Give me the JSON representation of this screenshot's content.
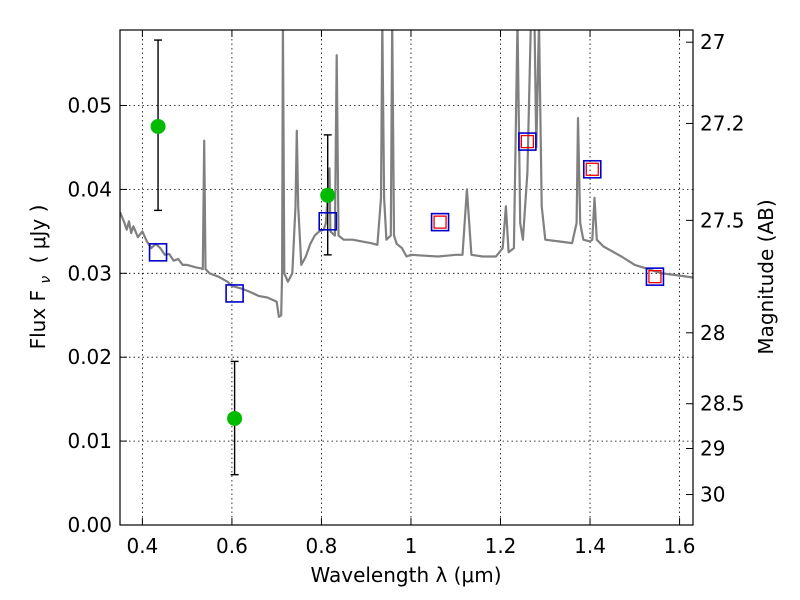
{
  "chart_data": {
    "type": "scatter",
    "title": "",
    "xlabel": "Wavelength  λ (μm)",
    "ylabel_left": "Flux  F",
    "ylabel_left_sub": "ν",
    "ylabel_left_unit": "( μJy )",
    "ylabel_right": "Magnitude (AB)",
    "xlim": [
      0.35,
      1.63
    ],
    "ylim": [
      0.0,
      0.059
    ],
    "grid": true,
    "x_ticks": [
      0.4,
      0.6,
      0.8,
      1.0,
      1.2,
      1.4,
      1.6
    ],
    "x_tick_labels": [
      "0.4",
      "0.6",
      "0.8",
      "1",
      "1.2",
      "1.4",
      "1.6"
    ],
    "y_ticks": [
      0.0,
      0.01,
      0.02,
      0.03,
      0.04,
      0.05
    ],
    "y_tick_labels": [
      "0.00",
      "0.01",
      "0.02",
      "0.03",
      "0.04",
      "0.05"
    ],
    "right_ticks": [
      27,
      27.2,
      27.5,
      28,
      28.5,
      29,
      30
    ],
    "right_tick_labels": [
      "27",
      "27.2",
      "27.5",
      "28",
      "28.5",
      "29",
      "30"
    ],
    "colors": {
      "observed": "#00bb00",
      "errorbar": "#000000",
      "model_square": "#0000cc",
      "inner_square": "#ee0000",
      "sed": "#808080"
    },
    "observed": [
      {
        "x": 0.435,
        "y": 0.0475,
        "yerr_low": 0.0375,
        "yerr_high": 0.0578
      },
      {
        "x": 0.606,
        "y": 0.0127,
        "yerr_low": 0.006,
        "yerr_high": 0.0195
      },
      {
        "x": 0.814,
        "y": 0.0393,
        "yerr_low": 0.0322,
        "yerr_high": 0.0465
      }
    ],
    "model_photometry": [
      {
        "x": 0.435,
        "y": 0.0325
      },
      {
        "x": 0.606,
        "y": 0.0276
      },
      {
        "x": 0.814,
        "y": 0.0362
      },
      {
        "x": 1.065,
        "y": 0.0361
      },
      {
        "x": 1.26,
        "y": 0.0457
      },
      {
        "x": 1.405,
        "y": 0.0424
      },
      {
        "x": 1.545,
        "y": 0.0296
      }
    ],
    "band_photometry": [
      {
        "x": 1.065,
        "y": 0.0361
      },
      {
        "x": 1.26,
        "y": 0.0457
      },
      {
        "x": 1.405,
        "y": 0.0424
      },
      {
        "x": 1.545,
        "y": 0.0296
      }
    ],
    "sed_curve": [
      [
        0.35,
        0.0373
      ],
      [
        0.36,
        0.036
      ],
      [
        0.365,
        0.0352
      ],
      [
        0.37,
        0.0362
      ],
      [
        0.375,
        0.0348
      ],
      [
        0.38,
        0.0356
      ],
      [
        0.39,
        0.0343
      ],
      [
        0.4,
        0.035
      ],
      [
        0.41,
        0.0338
      ],
      [
        0.42,
        0.033
      ],
      [
        0.43,
        0.0335
      ],
      [
        0.44,
        0.033
      ],
      [
        0.45,
        0.0322
      ],
      [
        0.46,
        0.0323
      ],
      [
        0.47,
        0.0315
      ],
      [
        0.48,
        0.0317
      ],
      [
        0.49,
        0.031
      ],
      [
        0.5,
        0.031
      ],
      [
        0.52,
        0.0307
      ],
      [
        0.53,
        0.0306
      ],
      [
        0.535,
        0.0305
      ],
      [
        0.538,
        0.0458
      ],
      [
        0.541,
        0.0305
      ],
      [
        0.55,
        0.03
      ],
      [
        0.57,
        0.0296
      ],
      [
        0.59,
        0.029
      ],
      [
        0.6,
        0.0285
      ],
      [
        0.62,
        0.0282
      ],
      [
        0.64,
        0.0278
      ],
      [
        0.66,
        0.0273
      ],
      [
        0.68,
        0.0271
      ],
      [
        0.7,
        0.0266
      ],
      [
        0.705,
        0.0248
      ],
      [
        0.71,
        0.025
      ],
      [
        0.712,
        0.03
      ],
      [
        0.714,
        0.06
      ],
      [
        0.717,
        0.03
      ],
      [
        0.725,
        0.029
      ],
      [
        0.735,
        0.03
      ],
      [
        0.742,
        0.038
      ],
      [
        0.745,
        0.047
      ],
      [
        0.748,
        0.038
      ],
      [
        0.755,
        0.031
      ],
      [
        0.765,
        0.032
      ],
      [
        0.775,
        0.0335
      ],
      [
        0.785,
        0.0345
      ],
      [
        0.795,
        0.035
      ],
      [
        0.805,
        0.0352
      ],
      [
        0.81,
        0.036
      ],
      [
        0.815,
        0.04
      ],
      [
        0.818,
        0.0425
      ],
      [
        0.82,
        0.035
      ],
      [
        0.83,
        0.0345
      ],
      [
        0.834,
        0.056
      ],
      [
        0.838,
        0.0345
      ],
      [
        0.85,
        0.034
      ],
      [
        0.87,
        0.034
      ],
      [
        0.89,
        0.0338
      ],
      [
        0.91,
        0.0336
      ],
      [
        0.925,
        0.0334
      ],
      [
        0.933,
        0.039
      ],
      [
        0.936,
        0.06
      ],
      [
        0.94,
        0.039
      ],
      [
        0.945,
        0.034
      ],
      [
        0.955,
        0.0345
      ],
      [
        0.958,
        0.06
      ],
      [
        0.962,
        0.0345
      ],
      [
        0.968,
        0.0335
      ],
      [
        0.98,
        0.033
      ],
      [
        0.99,
        0.032
      ],
      [
        1.0,
        0.0322
      ],
      [
        1.03,
        0.0321
      ],
      [
        1.06,
        0.032
      ],
      [
        1.08,
        0.0321
      ],
      [
        1.1,
        0.0322
      ],
      [
        1.115,
        0.0322
      ],
      [
        1.125,
        0.04
      ],
      [
        1.135,
        0.0322
      ],
      [
        1.16,
        0.032
      ],
      [
        1.19,
        0.032
      ],
      [
        1.205,
        0.033
      ],
      [
        1.212,
        0.038
      ],
      [
        1.218,
        0.0325
      ],
      [
        1.23,
        0.033
      ],
      [
        1.238,
        0.06
      ],
      [
        1.244,
        0.036
      ],
      [
        1.25,
        0.034
      ],
      [
        1.26,
        0.042
      ],
      [
        1.268,
        0.06
      ],
      [
        1.272,
        0.06
      ],
      [
        1.276,
        0.06
      ],
      [
        1.28,
        0.045
      ],
      [
        1.286,
        0.06
      ],
      [
        1.292,
        0.038
      ],
      [
        1.3,
        0.034
      ],
      [
        1.33,
        0.0338
      ],
      [
        1.36,
        0.0336
      ],
      [
        1.37,
        0.036
      ],
      [
        1.373,
        0.0485
      ],
      [
        1.378,
        0.036
      ],
      [
        1.385,
        0.034
      ],
      [
        1.4,
        0.0338
      ],
      [
        1.405,
        0.034
      ],
      [
        1.41,
        0.039
      ],
      [
        1.415,
        0.034
      ],
      [
        1.43,
        0.0332
      ],
      [
        1.47,
        0.032
      ],
      [
        1.5,
        0.031
      ],
      [
        1.53,
        0.0305
      ],
      [
        1.56,
        0.03
      ],
      [
        1.59,
        0.0298
      ],
      [
        1.63,
        0.0295
      ]
    ]
  }
}
